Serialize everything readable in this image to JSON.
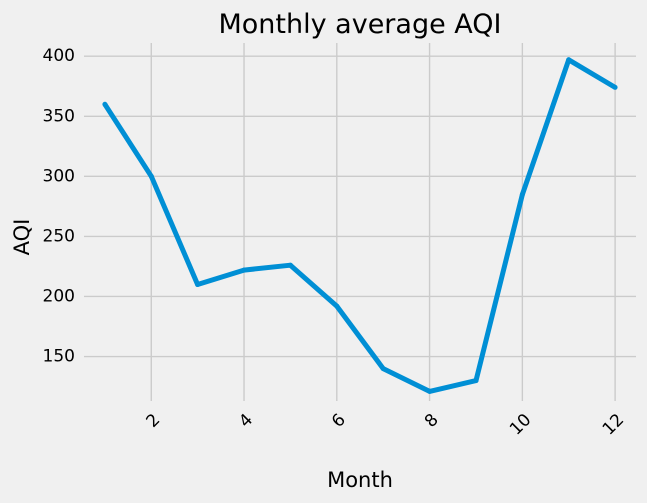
{
  "chart_data": {
    "type": "line",
    "title": "Monthly average AQI",
    "xlabel": "Month",
    "ylabel": "AQI",
    "xlim": [
      0.55,
      12.45
    ],
    "ylim": [
      113,
      411
    ],
    "x_ticks": [
      2,
      4,
      6,
      8,
      10,
      12
    ],
    "y_ticks": [
      150,
      200,
      250,
      300,
      350,
      400
    ],
    "x_tick_rotation": 45,
    "grid": true,
    "series": [
      {
        "x": [
          1,
          2,
          3,
          4,
          5,
          6,
          7,
          8,
          9,
          10,
          11,
          12
        ],
        "values": [
          360,
          300,
          210,
          222,
          226,
          192,
          140,
          121,
          130,
          285,
          397,
          374
        ],
        "color": "#008fd5"
      }
    ]
  }
}
